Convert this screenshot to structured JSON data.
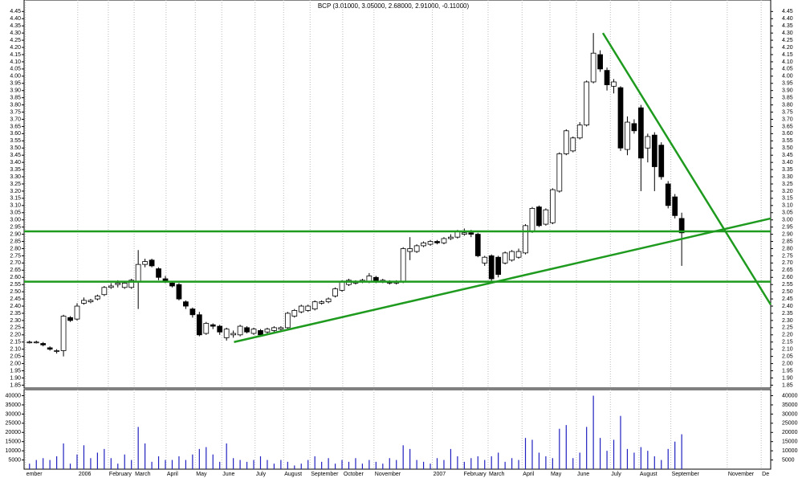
{
  "chart_data": {
    "type": "candlestick",
    "title": "BCP (3.01000, 3.05000, 2.68000, 2.91000, -0.11000)",
    "x": [
      0,
      1,
      2,
      3,
      4,
      5,
      6,
      7,
      8,
      9,
      10,
      11,
      12,
      13,
      14,
      15,
      16,
      17,
      18,
      19,
      20,
      21,
      22,
      23,
      24,
      25,
      26,
      27,
      28,
      29,
      30,
      31,
      32,
      33,
      34,
      35,
      36,
      37,
      38,
      39,
      40,
      41,
      42,
      43,
      44,
      45,
      46,
      47,
      48,
      49,
      50,
      51,
      52,
      53,
      54,
      55,
      56,
      57,
      58,
      59,
      60,
      61,
      62,
      63,
      64,
      65,
      66,
      67,
      68,
      69,
      70,
      71,
      72,
      73,
      74,
      75,
      76,
      77,
      78,
      79,
      80,
      81,
      82,
      83,
      84,
      85,
      86,
      87,
      88,
      89,
      90,
      91,
      92,
      93,
      94,
      95,
      96
    ],
    "open": [
      2.15,
      2.15,
      2.14,
      2.11,
      2.09,
      2.09,
      2.32,
      2.31,
      2.42,
      2.43,
      2.45,
      2.48,
      2.53,
      2.55,
      2.53,
      2.53,
      2.57,
      2.69,
      2.72,
      2.66,
      2.59,
      2.56,
      2.55,
      2.43,
      2.38,
      2.34,
      2.21,
      2.27,
      2.26,
      2.18,
      2.2,
      2.2,
      2.25,
      2.21,
      2.23,
      2.22,
      2.23,
      2.24,
      2.25,
      2.33,
      2.36,
      2.37,
      2.38,
      2.42,
      2.43,
      2.47,
      2.51,
      2.55,
      2.56,
      2.57,
      2.57,
      2.6,
      2.57,
      2.57,
      2.56,
      2.57,
      2.78,
      2.78,
      2.82,
      2.83,
      2.85,
      2.84,
      2.87,
      2.88,
      2.9,
      2.91,
      2.9,
      2.7,
      2.75,
      2.74,
      2.7,
      2.72,
      2.74,
      2.77,
      2.92,
      3.09,
      2.97,
      2.98,
      3.2,
      3.46,
      3.48,
      3.57,
      3.66,
      3.96,
      4.15,
      4.04,
      3.93,
      3.92,
      3.49,
      3.67,
      3.78,
      3.5,
      3.59,
      3.52,
      3.25,
      3.16,
      3.01
    ],
    "high": [
      2.16,
      2.16,
      2.15,
      2.12,
      2.1,
      2.34,
      2.33,
      2.42,
      2.46,
      2.45,
      2.48,
      2.54,
      2.56,
      2.58,
      2.57,
      2.59,
      2.79,
      2.73,
      2.73,
      2.67,
      2.61,
      2.57,
      2.56,
      2.44,
      2.39,
      2.36,
      2.29,
      2.28,
      2.27,
      2.25,
      2.23,
      2.27,
      2.26,
      2.25,
      2.24,
      2.25,
      2.26,
      2.26,
      2.36,
      2.38,
      2.41,
      2.41,
      2.44,
      2.44,
      2.46,
      2.53,
      2.58,
      2.59,
      2.58,
      2.59,
      2.63,
      2.61,
      2.59,
      2.58,
      2.58,
      2.81,
      2.88,
      2.83,
      2.85,
      2.86,
      2.86,
      2.88,
      2.9,
      2.93,
      2.94,
      2.93,
      2.91,
      2.75,
      2.76,
      2.75,
      2.78,
      2.79,
      2.8,
      2.97,
      3.09,
      3.1,
      3.08,
      3.22,
      3.47,
      3.63,
      3.58,
      3.68,
      3.97,
      4.3,
      4.18,
      4.06,
      3.98,
      3.93,
      3.72,
      3.7,
      3.8,
      3.6,
      3.61,
      3.54,
      3.27,
      3.18,
      3.05
    ],
    "low": [
      2.14,
      2.14,
      2.12,
      2.09,
      2.07,
      2.05,
      2.29,
      2.3,
      2.41,
      2.42,
      2.44,
      2.47,
      2.52,
      2.53,
      2.52,
      2.52,
      2.38,
      2.67,
      2.67,
      2.58,
      2.56,
      2.53,
      2.44,
      2.38,
      2.32,
      2.19,
      2.2,
      2.24,
      2.2,
      2.16,
      2.18,
      2.19,
      2.21,
      2.2,
      2.19,
      2.21,
      2.22,
      2.23,
      2.24,
      2.32,
      2.35,
      2.36,
      2.37,
      2.41,
      2.42,
      2.46,
      2.5,
      2.54,
      2.55,
      2.56,
      2.56,
      2.56,
      2.56,
      2.55,
      2.55,
      2.56,
      2.72,
      2.77,
      2.81,
      2.82,
      2.83,
      2.83,
      2.86,
      2.87,
      2.89,
      2.88,
      2.74,
      2.68,
      2.57,
      2.6,
      2.69,
      2.71,
      2.73,
      2.76,
      2.91,
      2.95,
      2.96,
      2.97,
      3.19,
      3.45,
      3.47,
      3.56,
      3.65,
      3.95,
      4.03,
      3.9,
      3.88,
      3.48,
      3.45,
      3.6,
      3.2,
      3.4,
      3.2,
      3.28,
      3.08,
      3.01,
      2.68
    ],
    "close": [
      2.15,
      2.15,
      2.13,
      2.1,
      2.09,
      2.33,
      2.3,
      2.4,
      2.44,
      2.44,
      2.47,
      2.53,
      2.54,
      2.56,
      2.56,
      2.58,
      2.69,
      2.71,
      2.68,
      2.6,
      2.57,
      2.54,
      2.45,
      2.4,
      2.34,
      2.2,
      2.28,
      2.26,
      2.22,
      2.24,
      2.21,
      2.26,
      2.22,
      2.24,
      2.2,
      2.24,
      2.25,
      2.25,
      2.35,
      2.37,
      2.4,
      2.4,
      2.43,
      2.43,
      2.45,
      2.52,
      2.57,
      2.58,
      2.57,
      2.58,
      2.61,
      2.57,
      2.58,
      2.56,
      2.57,
      2.8,
      2.8,
      2.82,
      2.84,
      2.85,
      2.84,
      2.87,
      2.88,
      2.92,
      2.91,
      2.9,
      2.75,
      2.74,
      2.59,
      2.62,
      2.77,
      2.78,
      2.78,
      2.96,
      3.08,
      2.96,
      3.07,
      3.21,
      3.46,
      3.62,
      3.57,
      3.66,
      3.96,
      4.16,
      4.05,
      3.94,
      3.96,
      3.5,
      3.68,
      3.62,
      3.43,
      3.58,
      3.37,
      3.3,
      3.1,
      3.03,
      2.91
    ],
    "volume": [
      3000,
      5000,
      6000,
      5000,
      7000,
      14000,
      3000,
      8000,
      13000,
      6000,
      9000,
      11000,
      6000,
      3000,
      8000,
      5000,
      23000,
      14000,
      4000,
      7000,
      5000,
      5000,
      7000,
      5000,
      8000,
      11000,
      12000,
      8000,
      4000,
      14000,
      6000,
      5000,
      4000,
      5000,
      7000,
      5000,
      3000,
      5000,
      4000,
      2000,
      3000,
      5000,
      7000,
      4000,
      6000,
      3000,
      5000,
      4000,
      6000,
      3000,
      5000,
      4000,
      3000,
      6000,
      5000,
      13000,
      11000,
      5000,
      4000,
      3000,
      6000,
      5000,
      11000,
      7000,
      4000,
      6000,
      7000,
      5000,
      7000,
      9000,
      4000,
      6000,
      5000,
      17000,
      16000,
      9000,
      7000,
      6000,
      22000,
      24000,
      6000,
      9000,
      23000,
      40000,
      17000,
      10000,
      16000,
      29000,
      11000,
      9000,
      12000,
      10000,
      7000,
      5000,
      11000,
      15000,
      19000
    ],
    "up_color": "#ffffff",
    "down_color": "#000000",
    "volume_color": "#2020c0",
    "xlim": [
      -0.8,
      109.1
    ],
    "xticks": [
      {
        "value": -0.6,
        "label": "ember"
      },
      {
        "value": 7.1,
        "label": "2006"
      },
      {
        "value": 11.6,
        "label": "February"
      },
      {
        "value": 15.4,
        "label": "March"
      },
      {
        "value": 20.1,
        "label": "April"
      },
      {
        "value": 24.4,
        "label": "May"
      },
      {
        "value": 28.3,
        "label": "June"
      },
      {
        "value": 33.2,
        "label": "July"
      },
      {
        "value": 37.4,
        "label": "August"
      },
      {
        "value": 41.3,
        "label": "September"
      },
      {
        "value": 46.1,
        "label": "October"
      },
      {
        "value": 50.7,
        "label": "November"
      },
      {
        "value": 59.3,
        "label": "2007"
      },
      {
        "value": 63.8,
        "label": "February"
      },
      {
        "value": 67.5,
        "label": "March"
      },
      {
        "value": 72.5,
        "label": "April"
      },
      {
        "value": 76.6,
        "label": "May"
      },
      {
        "value": 80.5,
        "label": "June"
      },
      {
        "value": 85.5,
        "label": "July"
      },
      {
        "value": 89.7,
        "label": "August"
      },
      {
        "value": 94.4,
        "label": "September"
      },
      {
        "value": 102.7,
        "label": "November"
      },
      {
        "value": 107.7,
        "label": "De"
      }
    ],
    "ylim": [
      1.83,
      4.53
    ],
    "yticks": [
      1.85,
      {
        "value": 1.9,
        "label": "1.90"
      },
      1.95,
      {
        "value": 2,
        "label": "2.00"
      },
      2.05,
      {
        "value": 2.1,
        "label": "2.10"
      },
      2.15,
      {
        "value": 2.2,
        "label": "2.20"
      },
      2.25,
      {
        "value": 2.3,
        "label": "2.30"
      },
      2.35,
      {
        "value": 2.4,
        "label": "2.40"
      },
      2.45,
      {
        "value": 2.5,
        "label": "2.50"
      },
      2.55,
      {
        "value": 2.6,
        "label": "2.60"
      },
      2.65,
      {
        "value": 2.7,
        "label": "2.70"
      },
      2.75,
      {
        "value": 2.8,
        "label": "2.80"
      },
      2.85,
      {
        "value": 2.9,
        "label": "2.90"
      },
      2.95,
      {
        "value": 3,
        "label": "3.00"
      },
      3.05,
      {
        "value": 3.1,
        "label": "3.10"
      },
      3.15,
      {
        "value": 3.2,
        "label": "3.20"
      },
      3.25,
      {
        "value": 3.3,
        "label": "3.30"
      },
      3.35,
      {
        "value": 3.4,
        "label": "3.40"
      },
      3.45,
      {
        "value": 3.5,
        "label": "3.50"
      },
      3.55,
      {
        "value": 3.6,
        "label": "3.60"
      },
      3.65,
      {
        "value": 3.7,
        "label": "3.70"
      },
      3.75,
      {
        "value": 3.8,
        "label": "3.80"
      },
      3.85,
      {
        "value": 3.9,
        "label": "3.90"
      },
      3.95,
      {
        "value": 4,
        "label": "4.00"
      },
      4.05,
      {
        "value": 4.1,
        "label": "4.10"
      },
      4.15,
      {
        "value": 4.2,
        "label": "4.20"
      },
      4.25,
      {
        "value": 4.3,
        "label": "4.30"
      },
      4.35,
      {
        "value": 4.4,
        "label": "4.40"
      },
      4.45
    ],
    "volume_ylim": [
      0,
      43300
    ],
    "volume_yticks": [
      5000,
      10000,
      15000,
      20000,
      25000,
      30000,
      35000,
      40000
    ],
    "grid": true,
    "lines": [
      {
        "x": [
          -0.8,
          109.1
        ],
        "y": [
          2.92,
          2.92
        ]
      },
      {
        "x": [
          -0.8,
          109.1
        ],
        "y": [
          2.57,
          2.57
        ]
      },
      {
        "x": [
          30.1,
          109.1
        ],
        "y": [
          2.15,
          3.01
        ]
      },
      {
        "x": [
          84.4,
          109.1
        ],
        "y": [
          4.3,
          2.41
        ]
      }
    ],
    "line_color": "#1e9a1e"
  }
}
